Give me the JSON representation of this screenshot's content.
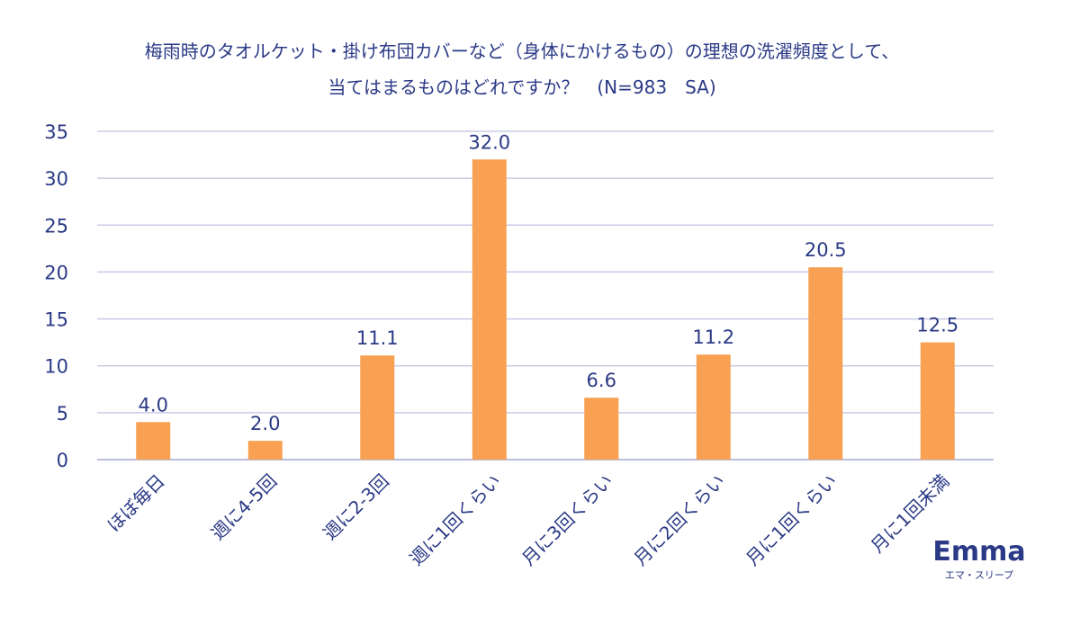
{
  "chart_data": {
    "type": "bar",
    "title_lines": [
      "梅雨時のタオルケット・掛け布団カバーなど（身体にかけるもの）の理想の洗濯頻度として、",
      "当てはまるものはどれですか？　(N=983　SA)"
    ],
    "categories": [
      "ほぼ毎日",
      "週に4-5回",
      "週に2-3回",
      "週に1回くらい",
      "月に3回くらい",
      "月に2回くらい",
      "月に1回くらい",
      "月に1回未満"
    ],
    "values": [
      4.0,
      2.0,
      11.1,
      32.0,
      6.6,
      11.2,
      20.5,
      12.5
    ],
    "value_labels": [
      "4.0",
      "2.0",
      "11.1",
      "32.0",
      "6.6",
      "11.2",
      "20.5",
      "12.5"
    ],
    "ylim": [
      0,
      35
    ],
    "yticks": [
      0,
      5,
      10,
      15,
      20,
      25,
      30,
      35
    ],
    "grid": true,
    "bar_color": "#f8a152",
    "text_color": "#2b3a86"
  },
  "brand": {
    "name": "Emma",
    "subtitle": "エマ・スリープ"
  }
}
